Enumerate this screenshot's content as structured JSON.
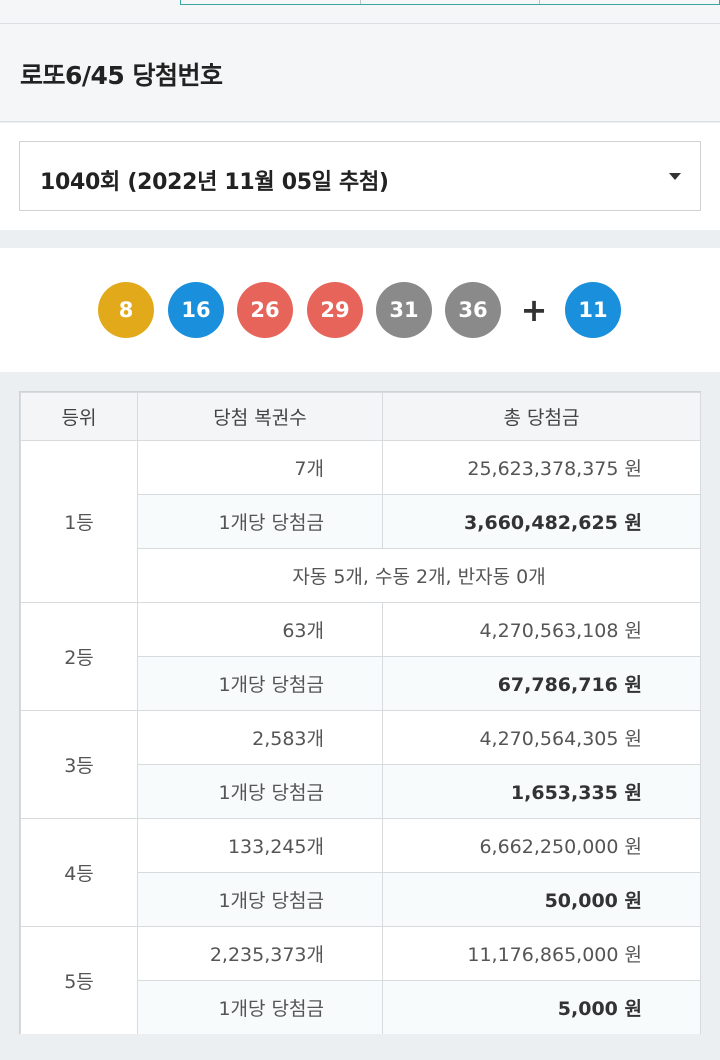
{
  "page": {
    "title": "로또6/45 당첨번호"
  },
  "draw_select": {
    "selected": "1040회 (2022년 11월 05일 추첨)"
  },
  "balls": {
    "main": [
      {
        "num": "8",
        "color": "#e2a91b"
      },
      {
        "num": "16",
        "color": "#1a8fdb"
      },
      {
        "num": "26",
        "color": "#e7645b"
      },
      {
        "num": "29",
        "color": "#e7645b"
      },
      {
        "num": "31",
        "color": "#8a8a8a"
      },
      {
        "num": "36",
        "color": "#8a8a8a"
      }
    ],
    "plus": "+",
    "bonus": {
      "num": "11",
      "color": "#1a8fdb"
    }
  },
  "table": {
    "headers": [
      "등위",
      "당첨 복권수",
      "총 당첨금"
    ],
    "rows": [
      {
        "rank": "1등",
        "count": "7개",
        "total": "25,623,378,375 원",
        "per_label": "1개당 당첨금",
        "per_amount": "3,660,482,625 원",
        "note": "자동 5개, 수동 2개, 반자동 0개"
      },
      {
        "rank": "2등",
        "count": "63개",
        "total": "4,270,563,108 원",
        "per_label": "1개당 당첨금",
        "per_amount": "67,786,716 원"
      },
      {
        "rank": "3등",
        "count": "2,583개",
        "total": "4,270,564,305 원",
        "per_label": "1개당 당첨금",
        "per_amount": "1,653,335 원"
      },
      {
        "rank": "4등",
        "count": "133,245개",
        "total": "6,662,250,000 원",
        "per_label": "1개당 당첨금",
        "per_amount": "50,000 원"
      },
      {
        "rank": "5등",
        "count": "2,235,373개",
        "total": "11,176,865,000 원",
        "per_label": "1개당 당첨금",
        "per_amount": "5,000 원"
      }
    ]
  }
}
